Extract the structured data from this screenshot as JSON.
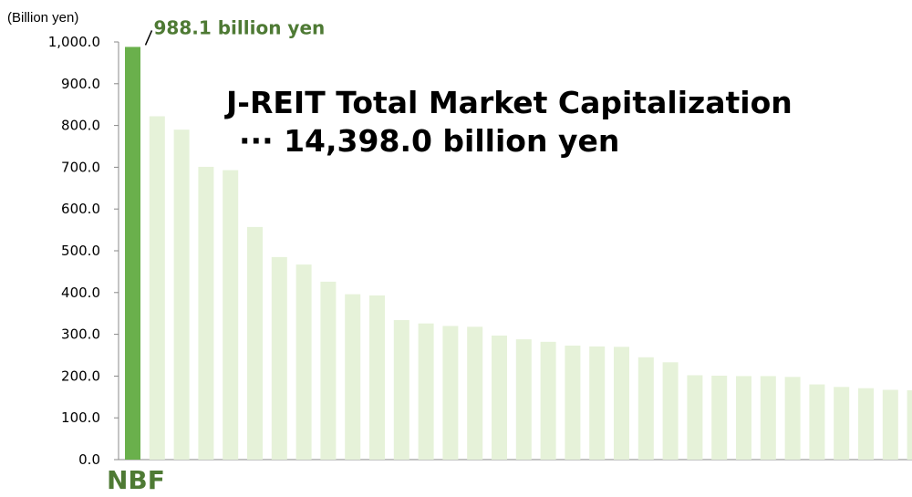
{
  "chart_data": {
    "type": "bar",
    "title": "J-REIT Total Market Capitalization",
    "subtitle": "··· 14,398.0 billion yen",
    "unit_label": "(Billion yen)",
    "ylim": [
      0,
      1000
    ],
    "yticks": [
      "0.0",
      "100.0",
      "200.0",
      "300.0",
      "400.0",
      "500.0",
      "600.0",
      "700.0",
      "800.0",
      "900.0",
      "1,000.0"
    ],
    "highlight": {
      "category": "NBF",
      "value": 988.1,
      "annotation": "988.1 billion yen",
      "color": "#6ab04c"
    },
    "other_color": "#e6f2d9",
    "values": [
      988.1,
      822,
      790,
      701,
      693,
      557,
      485,
      467,
      426,
      396,
      393,
      334,
      326,
      320,
      318,
      297,
      288,
      282,
      273,
      271,
      270,
      245,
      233,
      202,
      201,
      200,
      200,
      198,
      180,
      174,
      171,
      167,
      166
    ]
  }
}
